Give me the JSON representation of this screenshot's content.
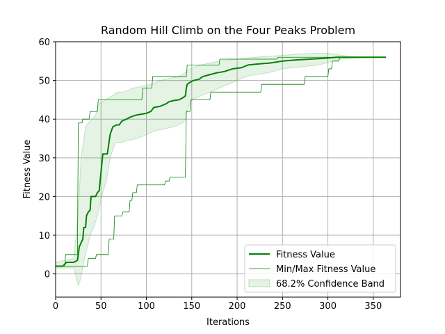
{
  "chart_data": {
    "type": "line",
    "title": "Random Hill Climb on the Four Peaks Problem",
    "xlabel": "Iterations",
    "ylabel": "Fitness Value",
    "xlim": [
      0,
      380
    ],
    "ylim": [
      -6,
      60
    ],
    "xticks": [
      0,
      50,
      100,
      150,
      200,
      250,
      300,
      350
    ],
    "yticks": [
      0,
      10,
      20,
      30,
      40,
      50,
      60
    ],
    "grid": true,
    "legend_position": "lower-right",
    "colors": {
      "line": "#008000",
      "band": "#2ca02c"
    },
    "series": [
      {
        "name": "Fitness Value",
        "kind": "mean",
        "points": [
          [
            0,
            2
          ],
          [
            8,
            2
          ],
          [
            10,
            2.5
          ],
          [
            12,
            3
          ],
          [
            15,
            3
          ],
          [
            20,
            3
          ],
          [
            24,
            3.5
          ],
          [
            25,
            5
          ],
          [
            26,
            7
          ],
          [
            28,
            8
          ],
          [
            30,
            9
          ],
          [
            31,
            12
          ],
          [
            33,
            12
          ],
          [
            34,
            15
          ],
          [
            36,
            16
          ],
          [
            38,
            16.5
          ],
          [
            39,
            20
          ],
          [
            44,
            20
          ],
          [
            46,
            21
          ],
          [
            48,
            21.5
          ],
          [
            52,
            31
          ],
          [
            57,
            31
          ],
          [
            60,
            36
          ],
          [
            63,
            38
          ],
          [
            67,
            38.5
          ],
          [
            70,
            38.5
          ],
          [
            73,
            39.5
          ],
          [
            78,
            40
          ],
          [
            82,
            40.5
          ],
          [
            88,
            41
          ],
          [
            95,
            41.3
          ],
          [
            100,
            41.5
          ],
          [
            105,
            42
          ],
          [
            108,
            43
          ],
          [
            115,
            43.3
          ],
          [
            122,
            44
          ],
          [
            125,
            44.5
          ],
          [
            130,
            44.8
          ],
          [
            136,
            45
          ],
          [
            140,
            45.5
          ],
          [
            143,
            46
          ],
          [
            144,
            48
          ],
          [
            145,
            49
          ],
          [
            148,
            49.5
          ],
          [
            152,
            50
          ],
          [
            158,
            50.3
          ],
          [
            162,
            51
          ],
          [
            170,
            51.5
          ],
          [
            178,
            52
          ],
          [
            186,
            52.3
          ],
          [
            195,
            53
          ],
          [
            205,
            53.3
          ],
          [
            212,
            54
          ],
          [
            225,
            54.3
          ],
          [
            236,
            54.5
          ],
          [
            250,
            55
          ],
          [
            265,
            55.3
          ],
          [
            280,
            55.5
          ],
          [
            295,
            55.7
          ],
          [
            310,
            56
          ],
          [
            330,
            56
          ],
          [
            364,
            56
          ]
        ]
      },
      {
        "name": "Min/Max Fitness Value",
        "kind": "max",
        "points": [
          [
            0,
            2
          ],
          [
            10,
            2
          ],
          [
            11,
            5
          ],
          [
            24,
            5
          ],
          [
            25,
            39
          ],
          [
            29,
            39
          ],
          [
            30,
            40
          ],
          [
            37,
            40
          ],
          [
            38,
            42
          ],
          [
            46,
            42
          ],
          [
            47,
            45
          ],
          [
            95,
            45
          ],
          [
            96,
            48
          ],
          [
            106,
            48
          ],
          [
            107,
            51
          ],
          [
            144,
            51
          ],
          [
            145,
            54
          ],
          [
            180,
            54
          ],
          [
            181,
            55.5
          ],
          [
            244,
            55.5
          ],
          [
            245,
            56
          ],
          [
            364,
            56
          ]
        ]
      },
      {
        "kind": "min",
        "points": [
          [
            0,
            2
          ],
          [
            35,
            2
          ],
          [
            36,
            4
          ],
          [
            44,
            4
          ],
          [
            45,
            5
          ],
          [
            58,
            5
          ],
          [
            59,
            9
          ],
          [
            64,
            9
          ],
          [
            65,
            15
          ],
          [
            73,
            15
          ],
          [
            74,
            16
          ],
          [
            81,
            16
          ],
          [
            82,
            19
          ],
          [
            84,
            19
          ],
          [
            85,
            21
          ],
          [
            89,
            21
          ],
          [
            90,
            23
          ],
          [
            120,
            23
          ],
          [
            121,
            24
          ],
          [
            125,
            24
          ],
          [
            126,
            25
          ],
          [
            143,
            25
          ],
          [
            144,
            42
          ],
          [
            148,
            42
          ],
          [
            149,
            45
          ],
          [
            170,
            45
          ],
          [
            171,
            47
          ],
          [
            226,
            47
          ],
          [
            227,
            49
          ],
          [
            274,
            49
          ],
          [
            275,
            51
          ],
          [
            300,
            51
          ],
          [
            301,
            53
          ],
          [
            304,
            53
          ],
          [
            305,
            55
          ],
          [
            312,
            55
          ],
          [
            313,
            56
          ],
          [
            364,
            56
          ]
        ]
      },
      {
        "name": "68.2% Confidence Band",
        "kind": "band",
        "lower": [
          [
            0,
            1.5
          ],
          [
            20,
            1.5
          ],
          [
            25,
            -3
          ],
          [
            28,
            -1
          ],
          [
            30,
            2
          ],
          [
            34,
            6
          ],
          [
            38,
            10
          ],
          [
            42,
            12
          ],
          [
            46,
            15
          ],
          [
            52,
            21
          ],
          [
            56,
            24
          ],
          [
            60,
            30
          ],
          [
            66,
            34
          ],
          [
            72,
            34
          ],
          [
            80,
            34.5
          ],
          [
            90,
            35
          ],
          [
            100,
            36
          ],
          [
            110,
            37
          ],
          [
            120,
            37.5
          ],
          [
            130,
            38
          ],
          [
            140,
            39
          ],
          [
            143,
            40
          ],
          [
            146,
            43
          ],
          [
            150,
            45
          ],
          [
            160,
            46
          ],
          [
            170,
            47
          ],
          [
            180,
            48
          ],
          [
            190,
            49
          ],
          [
            200,
            50
          ],
          [
            210,
            51
          ],
          [
            220,
            51.5
          ],
          [
            235,
            52
          ],
          [
            250,
            53
          ],
          [
            270,
            53.5
          ],
          [
            290,
            54
          ],
          [
            305,
            55
          ],
          [
            315,
            55.5
          ],
          [
            330,
            55.8
          ],
          [
            364,
            56
          ]
        ],
        "upper": [
          [
            0,
            3
          ],
          [
            20,
            4
          ],
          [
            25,
            16
          ],
          [
            28,
            30
          ],
          [
            30,
            33
          ],
          [
            33,
            38
          ],
          [
            36,
            39
          ],
          [
            40,
            40
          ],
          [
            44,
            41
          ],
          [
            48,
            44
          ],
          [
            55,
            45
          ],
          [
            62,
            46
          ],
          [
            68,
            47
          ],
          [
            75,
            47
          ],
          [
            85,
            48
          ],
          [
            95,
            48.5
          ],
          [
            105,
            49
          ],
          [
            115,
            50
          ],
          [
            125,
            50.5
          ],
          [
            135,
            51
          ],
          [
            143,
            52
          ],
          [
            148,
            53
          ],
          [
            160,
            54
          ],
          [
            180,
            55
          ],
          [
            200,
            55.5
          ],
          [
            220,
            56
          ],
          [
            250,
            56.5
          ],
          [
            280,
            57
          ],
          [
            300,
            57
          ],
          [
            315,
            56.5
          ],
          [
            330,
            56
          ],
          [
            364,
            56
          ]
        ]
      }
    ],
    "legend": [
      "Fitness Value",
      "Min/Max Fitness Value",
      "68.2% Confidence Band"
    ]
  }
}
